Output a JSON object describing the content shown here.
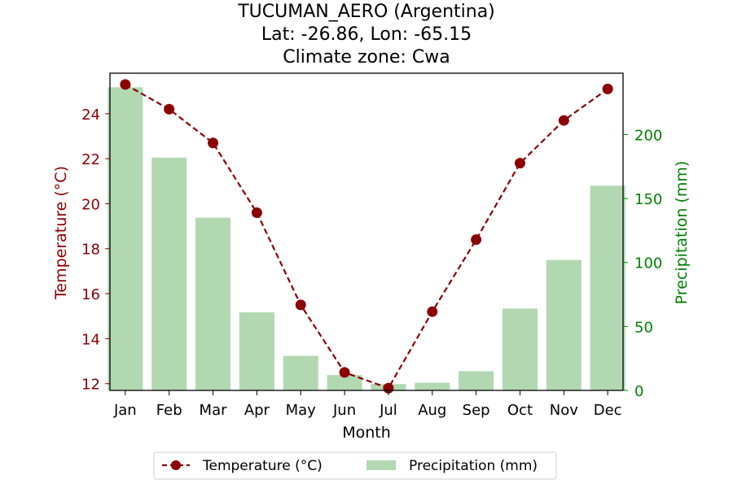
{
  "title_lines": [
    "TUCUMAN_AERO (Argentina)",
    "Lat: -26.86, Lon: -65.15",
    "Climate zone: Cwa"
  ],
  "colors": {
    "temperature": "#8b0000",
    "precipitation": "#b2d8b2",
    "precipitation_axis": "#008000"
  },
  "chart_data": {
    "type": "bar+line",
    "title": "TUCUMAN_AERO (Argentina)\nLat: -26.86, Lon: -65.15\nClimate zone: Cwa",
    "xlabel": "Month",
    "ylabel_left": "Temperature (°C)",
    "ylabel_right": "Precipitation (mm)",
    "categories": [
      "Jan",
      "Feb",
      "Mar",
      "Apr",
      "May",
      "Jun",
      "Jul",
      "Aug",
      "Sep",
      "Oct",
      "Nov",
      "Dec"
    ],
    "series": [
      {
        "name": "Temperature (°C)",
        "type": "line",
        "axis": "left",
        "values": [
          25.3,
          24.2,
          22.7,
          19.6,
          15.5,
          12.5,
          11.8,
          15.2,
          18.4,
          21.8,
          23.7,
          25.1
        ]
      },
      {
        "name": "Precipitation (mm)",
        "type": "bar",
        "axis": "right",
        "values": [
          237,
          182,
          135,
          61,
          27,
          12,
          5,
          6,
          15,
          64,
          102,
          160
        ]
      }
    ],
    "ylim_left": [
      11.7,
      25.8
    ],
    "ylim_right": [
      0,
      248
    ],
    "yticks_left": [
      12,
      14,
      16,
      18,
      20,
      22,
      24
    ],
    "yticks_right": [
      0,
      50,
      100,
      150,
      200
    ],
    "legend_position": "bottom-center",
    "grid": false
  }
}
